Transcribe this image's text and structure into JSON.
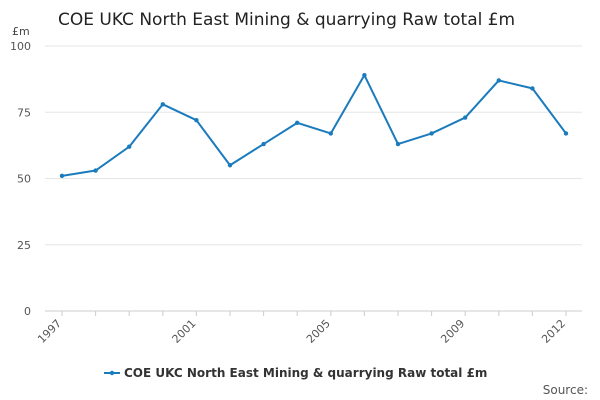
{
  "chart_data": {
    "type": "line",
    "title": "COE UKC North East Mining & quarrying Raw total £m",
    "ylabel": "£m",
    "xlabel": "",
    "x": [
      1997,
      1998,
      1999,
      2000,
      2001,
      2002,
      2003,
      2004,
      2005,
      2006,
      2007,
      2008,
      2009,
      2010,
      2011,
      2012
    ],
    "x_tick_labels": [
      "1997",
      "2001",
      "2005",
      "2009",
      "2012"
    ],
    "y_ticks": [
      0,
      25,
      50,
      75,
      100
    ],
    "ylim": [
      0,
      100
    ],
    "grid": true,
    "series": [
      {
        "name": "COE UKC North East Mining & quarrying Raw total £m",
        "values": [
          51,
          53,
          62,
          78,
          72,
          55,
          63,
          71,
          67,
          89,
          63,
          67,
          73,
          87,
          84,
          67
        ],
        "color": "#1a7bbd"
      }
    ],
    "legend_position": "bottom"
  },
  "source_label": "Source:"
}
